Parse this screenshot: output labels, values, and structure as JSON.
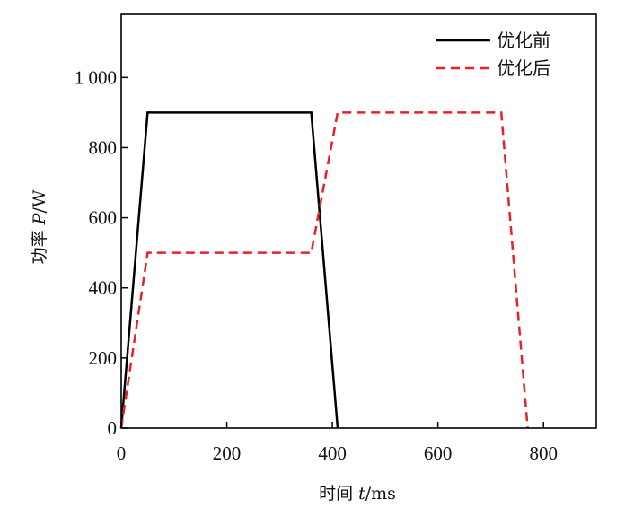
{
  "chart_data": {
    "type": "line",
    "xlabel_prefix": "时间 ",
    "xlabel_var": "t",
    "xlabel_unit": "/ms",
    "ylabel_prefix": "功率 ",
    "ylabel_var": "P",
    "ylabel_unit": "/W",
    "xlim": [
      0,
      900
    ],
    "ylim": [
      0,
      1180
    ],
    "x_ticks": [
      0,
      200,
      400,
      600,
      800
    ],
    "x_tick_labels": [
      "0",
      "200",
      "400",
      "600",
      "800"
    ],
    "y_ticks": [
      0,
      200,
      400,
      600,
      800,
      1000
    ],
    "y_tick_labels": [
      "0",
      "200",
      "400",
      "600",
      "800",
      "1 000"
    ],
    "grid": false,
    "legend_position": "top-right",
    "series": [
      {
        "name": "优化前",
        "color": "#000000",
        "style": "solid",
        "x": [
          0,
          50,
          360,
          410
        ],
        "y": [
          0,
          900,
          900,
          0
        ]
      },
      {
        "name": "优化后",
        "color": "#e8202a",
        "style": "dashed",
        "x": [
          0,
          50,
          360,
          410,
          720,
          770
        ],
        "y": [
          0,
          500,
          500,
          900,
          900,
          0
        ]
      }
    ]
  }
}
